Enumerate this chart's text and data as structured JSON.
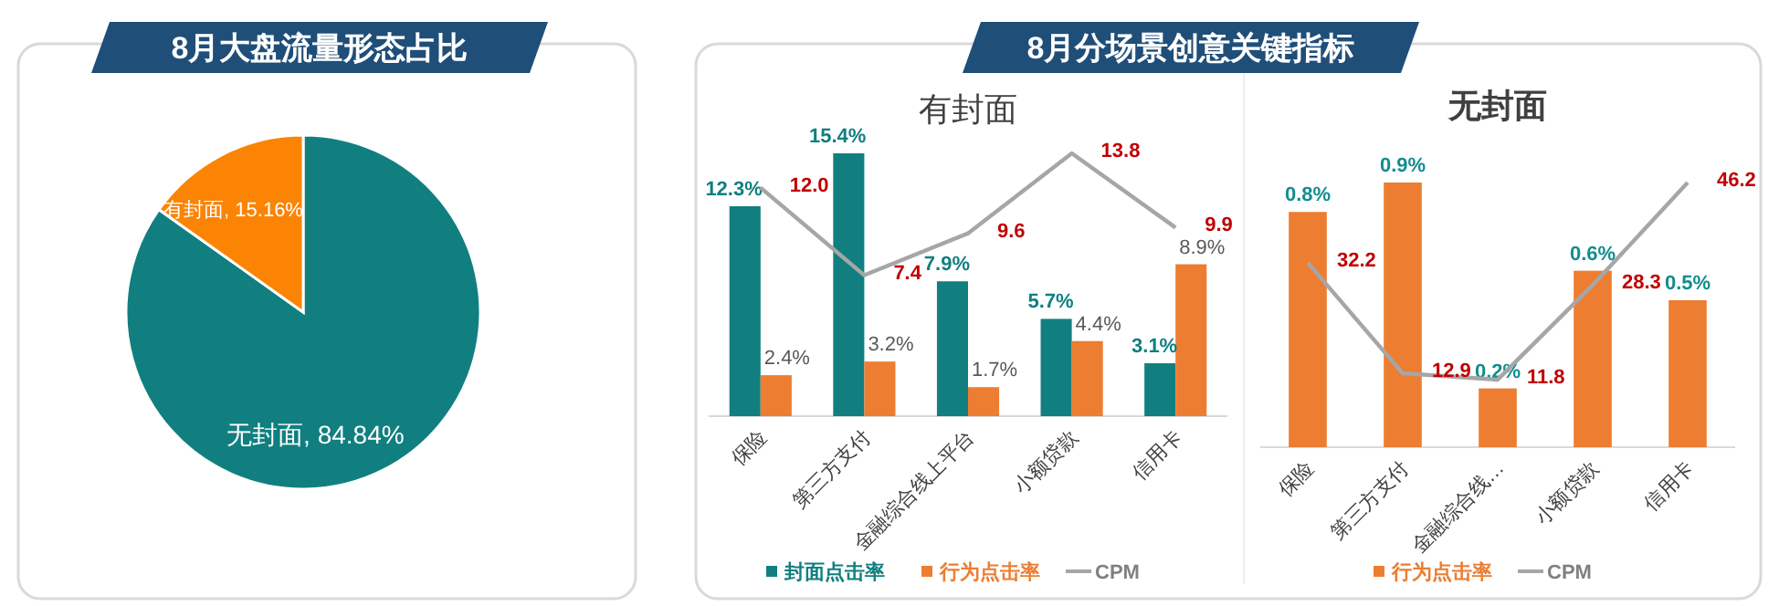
{
  "chart_data": [
    {
      "type": "pie",
      "title": "8月大盘流量形态占比",
      "categories": [
        "无封面",
        "有封面"
      ],
      "values": [
        84.84,
        15.16
      ],
      "colors": [
        "#117f80",
        "#fb8404"
      ],
      "value_labels": [
        "84.84%",
        "15.16%"
      ]
    },
    {
      "type": "bar",
      "title": "8月分场景创意关键指标",
      "subtitle": "有封面",
      "categories": [
        "保险",
        "第三方支付",
        "金融综合线上平台",
        "小额贷款",
        "信用卡"
      ],
      "legend": "bottom",
      "series": [
        {
          "name": "封面点击率",
          "color": "#117f80",
          "values": [
            12.3,
            15.4,
            7.9,
            5.7,
            3.1
          ],
          "value_labels": [
            "12.3%",
            "15.4%",
            "7.9%",
            "5.7%",
            "3.1%"
          ]
        },
        {
          "name": "行为点击率",
          "color": "#ed7d31",
          "values": [
            2.4,
            3.2,
            1.7,
            4.4,
            8.9
          ],
          "value_labels": [
            "2.4%",
            "3.2%",
            "1.7%",
            "4.4%",
            "8.9%"
          ]
        },
        {
          "name": "CPM",
          "type": "line",
          "axis": "y2",
          "color": "#a6a6a6",
          "values": [
            12.0,
            7.4,
            9.6,
            13.8,
            9.9
          ],
          "value_labels": [
            "12.0",
            "7.4",
            "9.6",
            "13.8",
            "9.9"
          ]
        }
      ]
    },
    {
      "type": "bar",
      "title": "无封面",
      "categories": [
        "保险",
        "第三方支付",
        "金融综合线…",
        "小额贷款",
        "信用卡"
      ],
      "legend": "bottom",
      "series": [
        {
          "name": "行为点击率",
          "color": "#ed7d31",
          "values": [
            0.8,
            0.9,
            0.2,
            0.6,
            0.5
          ],
          "value_labels": [
            "0.8%",
            "0.9%",
            "0.2%",
            "0.6%",
            "0.5%"
          ]
        },
        {
          "name": "CPM",
          "type": "line",
          "axis": "y2",
          "color": "#a6a6a6",
          "values": [
            32.2,
            12.9,
            11.8,
            28.3,
            46.2
          ],
          "value_labels": [
            "32.2",
            "12.9",
            "11.8",
            "28.3",
            "46.2"
          ]
        }
      ]
    }
  ]
}
